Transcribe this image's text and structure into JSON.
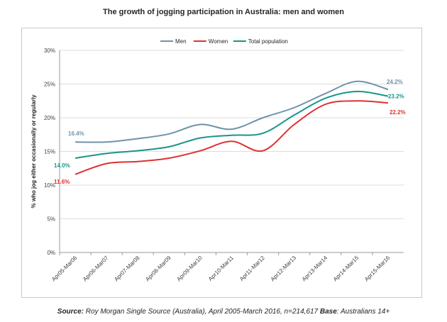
{
  "chart_data": {
    "type": "line",
    "title": "The growth of jogging participation in Australia: men and women",
    "xlabel": "",
    "ylabel": "% who jog either occasionally or regularly",
    "categories": [
      "Apr05-Mar06",
      "Apr06-Mar07",
      "Apr07-Mar08",
      "Apr08-Mar09",
      "Apr09-Mar10",
      "Apr10-Mar11",
      "Apr11-Mar12",
      "Apr12-Mar13",
      "Apr13-Mar14",
      "Apr14-Mar15",
      "Apr15-Mar16"
    ],
    "y_ticks": [
      0,
      5,
      10,
      15,
      20,
      25,
      30
    ],
    "y_tick_labels": [
      "0%",
      "5%",
      "10%",
      "15%",
      "20%",
      "25%",
      "30%"
    ],
    "ylim": [
      0,
      30
    ],
    "grid": true,
    "legend_position": "top",
    "series": [
      {
        "name": "Men",
        "color": "#6e93aa",
        "values": [
          16.4,
          16.4,
          16.9,
          17.6,
          19.0,
          18.3,
          20.0,
          21.5,
          23.6,
          25.4,
          24.2
        ],
        "start_label": "16.4%",
        "end_label": "24.2%"
      },
      {
        "name": "Women",
        "color": "#e03030",
        "values": [
          11.6,
          13.2,
          13.5,
          14.0,
          15.1,
          16.5,
          15.1,
          19.0,
          22.0,
          22.5,
          22.2
        ],
        "start_label": "11.6%",
        "end_label": "22.2%"
      },
      {
        "name": "Total population",
        "color": "#18958a",
        "values": [
          14.0,
          14.7,
          15.1,
          15.7,
          17.0,
          17.4,
          17.7,
          20.4,
          22.9,
          23.9,
          23.2
        ],
        "start_label": "14.0%",
        "end_label": "23.2%"
      }
    ]
  },
  "source": {
    "prefix": "Source:",
    "text": " Roy Morgan Single Source (Australia), April 2005-March 2016, n=214,617 ",
    "base_label": "Base",
    "base_text": ": Australians 14+"
  }
}
